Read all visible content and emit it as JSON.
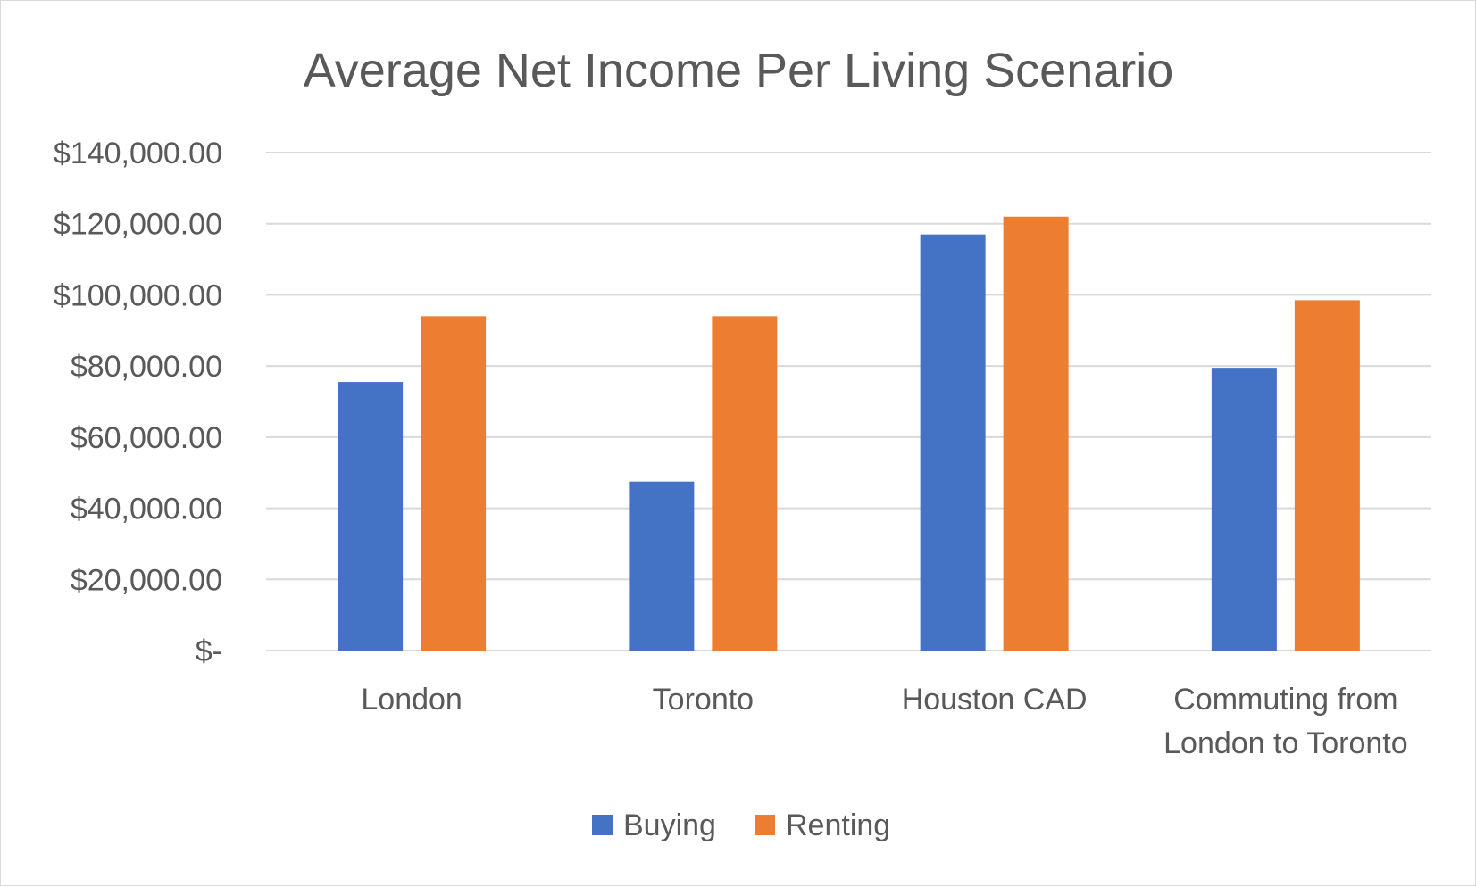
{
  "chart_data": {
    "type": "bar",
    "title": "Average Net Income Per Living Scenario",
    "xlabel": "",
    "ylabel": "",
    "categories": [
      [
        "London"
      ],
      [
        "Toronto"
      ],
      [
        "Houston CAD"
      ],
      [
        "Commuting from",
        "London to Toronto"
      ]
    ],
    "series": [
      {
        "name": "Buying",
        "color": "#4472C4",
        "values": [
          75500,
          47500,
          117000,
          79500
        ]
      },
      {
        "name": "Renting",
        "color": "#ED7D31",
        "values": [
          94000,
          94000,
          122000,
          98500
        ]
      }
    ],
    "ylim": [
      0,
      140000
    ],
    "yticks": [
      0,
      20000,
      40000,
      60000,
      80000,
      100000,
      120000,
      140000
    ],
    "ytick_labels": [
      "$-",
      "$20,000.00",
      "$40,000.00",
      "$60,000.00",
      "$80,000.00",
      "$100,000.00",
      "$120,000.00",
      "$140,000.00"
    ],
    "grid": true,
    "legend_position": "bottom"
  }
}
